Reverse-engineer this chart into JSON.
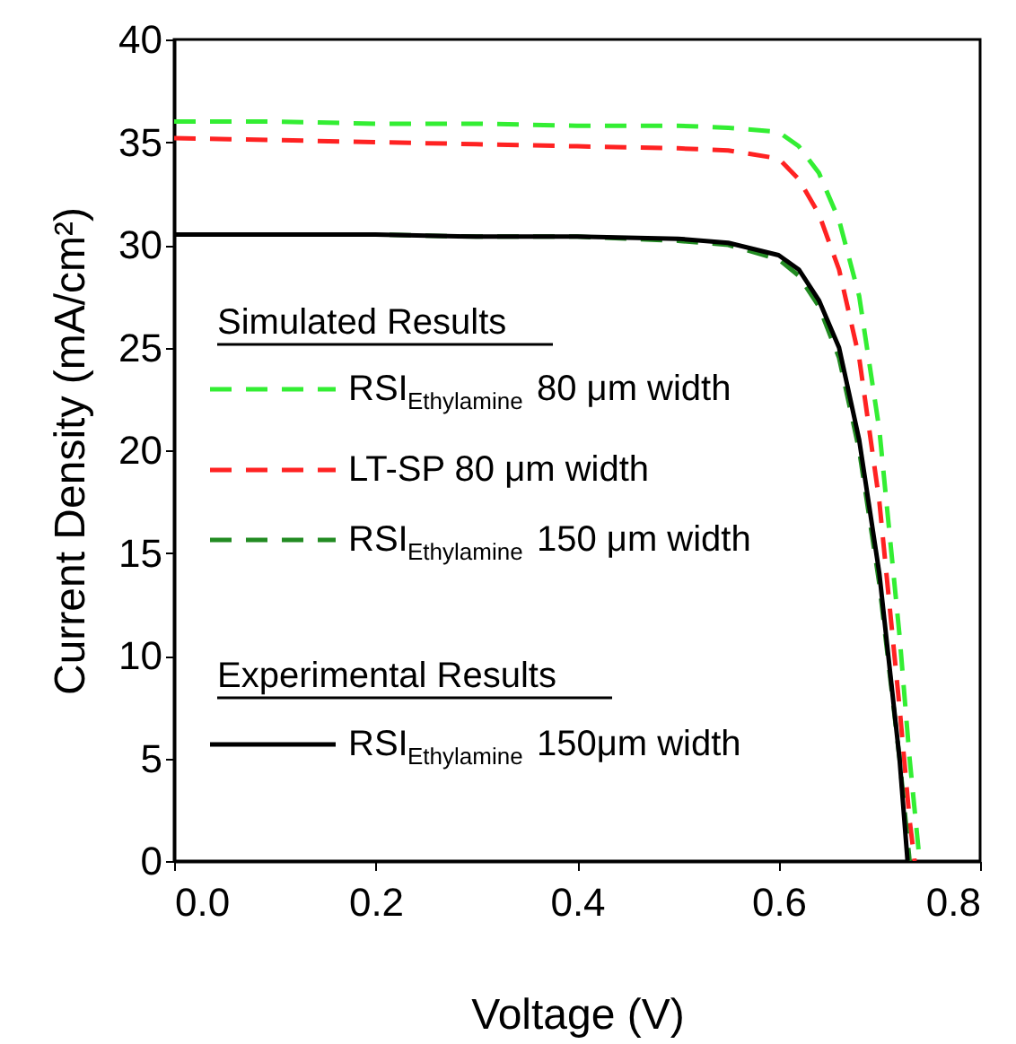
{
  "chart_data": {
    "type": "line",
    "xlabel": "Voltage (V)",
    "ylabel": "Current Density (mA/cm²)",
    "xlim": [
      0,
      0.8
    ],
    "xticks": [
      {
        "value": 0,
        "label": "0.0"
      },
      {
        "value": 0.2,
        "label": "0.2"
      },
      {
        "value": 0.4,
        "label": "0.4"
      },
      {
        "value": 0.6,
        "label": "0.6"
      },
      {
        "value": 0.8,
        "label": "0.8"
      }
    ],
    "ylim": [
      0,
      40
    ],
    "yticks": [
      0,
      5,
      10,
      15,
      20,
      25,
      30,
      35,
      40
    ],
    "grid": false,
    "legend": "left",
    "annotations": [
      "Simulated Results",
      "Experimental Results"
    ],
    "series": [
      {
        "name": "RSI$_{Ethylamine}$ 80 μm width",
        "color": "#33ee33",
        "line_style": "dashed",
        "x": [
          0,
          0.1,
          0.2,
          0.3,
          0.4,
          0.5,
          0.55,
          0.6,
          0.62,
          0.64,
          0.66,
          0.68,
          0.7,
          0.72,
          0.73,
          0.74
        ],
        "values": [
          36.0,
          36.0,
          35.9,
          35.9,
          35.8,
          35.8,
          35.7,
          35.5,
          34.8,
          33.5,
          31.2,
          27.5,
          21,
          11,
          5,
          0
        ]
      },
      {
        "name": "LT-SP 80 μm width",
        "color": "#ff2222",
        "line_style": "dashed",
        "x": [
          0,
          0.1,
          0.2,
          0.3,
          0.4,
          0.5,
          0.55,
          0.6,
          0.62,
          0.64,
          0.66,
          0.68,
          0.7,
          0.72,
          0.73,
          0.735
        ],
        "values": [
          35.2,
          35.1,
          35.0,
          34.9,
          34.8,
          34.7,
          34.6,
          34.2,
          33.2,
          31.5,
          28.8,
          24.5,
          17.5,
          7.5,
          2,
          0
        ]
      },
      {
        "name": "RSI$_{Ethylamine}$ 150 μm width",
        "color": "#228b22",
        "line_style": "dashed",
        "x": [
          0,
          0.1,
          0.2,
          0.3,
          0.4,
          0.5,
          0.55,
          0.6,
          0.62,
          0.64,
          0.66,
          0.68,
          0.7,
          0.72,
          0.73
        ],
        "values": [
          30.5,
          30.5,
          30.5,
          30.4,
          30.4,
          30.2,
          30.0,
          29.3,
          28.5,
          27.0,
          24.5,
          20,
          13.5,
          5,
          0
        ]
      },
      {
        "name": "RSI$_{Ethylamine}$ 150μm width",
        "color": "#000000",
        "line_style": "solid",
        "x": [
          0,
          0.1,
          0.2,
          0.3,
          0.4,
          0.5,
          0.55,
          0.6,
          0.62,
          0.64,
          0.66,
          0.68,
          0.7,
          0.72,
          0.728
        ],
        "values": [
          30.5,
          30.5,
          30.5,
          30.4,
          30.4,
          30.3,
          30.1,
          29.5,
          28.8,
          27.3,
          25,
          20.5,
          14,
          5,
          0
        ]
      }
    ]
  }
}
